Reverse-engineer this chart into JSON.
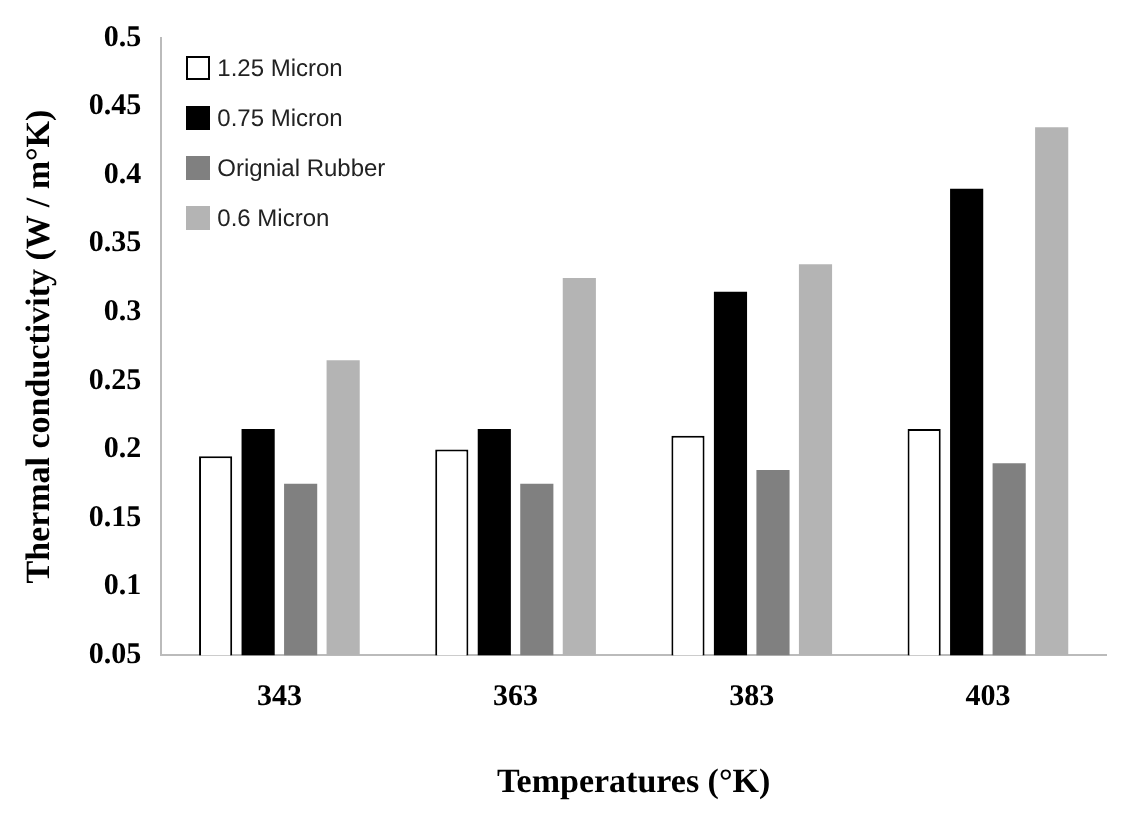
{
  "chart_data": {
    "type": "bar",
    "xlabel": "Temperatures (°K)",
    "ylabel": "Thermal conductivity (W / m°K)",
    "categories": [
      "343",
      "363",
      "383",
      "403"
    ],
    "series": [
      {
        "name": "1.25 Micron",
        "color": "#ffffff",
        "values": [
          0.195,
          0.2,
          0.21,
          0.215
        ]
      },
      {
        "name": "0.75 Micron",
        "color": "#000000",
        "values": [
          0.215,
          0.215,
          0.315,
          0.39
        ]
      },
      {
        "name": "Orignial Rubber",
        "color": "#808080",
        "values": [
          0.175,
          0.175,
          0.185,
          0.19
        ]
      },
      {
        "name": "0.6 Micron",
        "color": "#b4b4b4",
        "values": [
          0.265,
          0.325,
          0.335,
          0.435
        ]
      }
    ],
    "ylim": [
      0.05,
      0.5
    ],
    "yticks": [
      0.05,
      0.1,
      0.15,
      0.2,
      0.25,
      0.3,
      0.35,
      0.4,
      0.45,
      0.5
    ],
    "grid": false,
    "legend": "top left"
  }
}
